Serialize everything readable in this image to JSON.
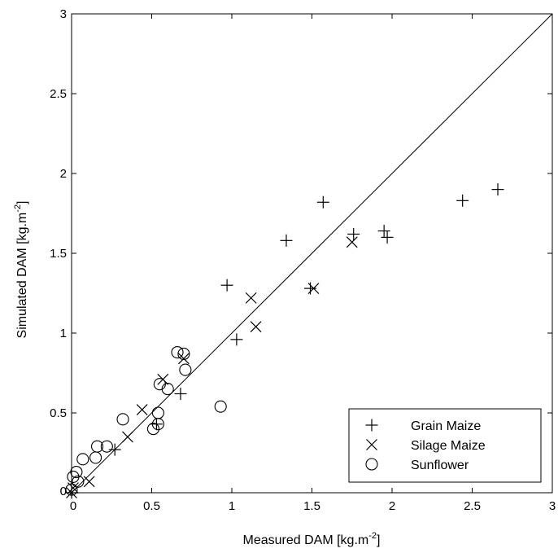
{
  "chart_data": {
    "type": "scatter",
    "xlabel": "Measured DAM [kg.m",
    "xlabel_sup": "-2",
    "xlabel_end": "]",
    "ylabel": "Simulated DAM [kg.m",
    "ylabel_sup": "-2",
    "ylabel_end": "]",
    "xlim": [
      0,
      3
    ],
    "ylim": [
      0,
      3
    ],
    "xticks": [
      "0",
      "0.5",
      "1",
      "1.5",
      "2",
      "2.5",
      "3"
    ],
    "yticks": [
      "0",
      "0.5",
      "1",
      "1.5",
      "2",
      "2.5",
      "3"
    ],
    "grid": false,
    "legend_position": "bottom-right",
    "reference_line": {
      "x": [
        0,
        3
      ],
      "y": [
        0,
        3
      ]
    },
    "series": [
      {
        "name": "Grain Maize",
        "marker": "plus",
        "points": [
          [
            0.0,
            0.0
          ],
          [
            0.27,
            0.27
          ],
          [
            0.53,
            0.43
          ],
          [
            0.68,
            0.62
          ],
          [
            0.97,
            1.3
          ],
          [
            1.03,
            0.96
          ],
          [
            1.34,
            1.58
          ],
          [
            1.49,
            1.28
          ],
          [
            1.57,
            1.82
          ],
          [
            1.76,
            1.62
          ],
          [
            1.95,
            1.64
          ],
          [
            1.97,
            1.6
          ],
          [
            2.44,
            1.83
          ],
          [
            2.66,
            1.9
          ]
        ]
      },
      {
        "name": "Silage Maize",
        "marker": "x",
        "points": [
          [
            0.0,
            0.0
          ],
          [
            0.01,
            0.03
          ],
          [
            0.11,
            0.07
          ],
          [
            0.35,
            0.35
          ],
          [
            0.44,
            0.52
          ],
          [
            0.57,
            0.71
          ],
          [
            0.7,
            0.84
          ],
          [
            1.12,
            1.22
          ],
          [
            1.15,
            1.04
          ],
          [
            1.51,
            1.28
          ],
          [
            1.75,
            1.57
          ]
        ]
      },
      {
        "name": "Sunflower",
        "marker": "circle",
        "points": [
          [
            0.0,
            0.02
          ],
          [
            0.01,
            0.1
          ],
          [
            0.03,
            0.13
          ],
          [
            0.04,
            0.07
          ],
          [
            0.07,
            0.21
          ],
          [
            0.15,
            0.22
          ],
          [
            0.16,
            0.29
          ],
          [
            0.22,
            0.29
          ],
          [
            0.32,
            0.46
          ],
          [
            0.51,
            0.4
          ],
          [
            0.54,
            0.43
          ],
          [
            0.54,
            0.5
          ],
          [
            0.55,
            0.68
          ],
          [
            0.6,
            0.65
          ],
          [
            0.66,
            0.88
          ],
          [
            0.7,
            0.87
          ],
          [
            0.71,
            0.77
          ],
          [
            0.93,
            0.54
          ]
        ]
      }
    ]
  }
}
